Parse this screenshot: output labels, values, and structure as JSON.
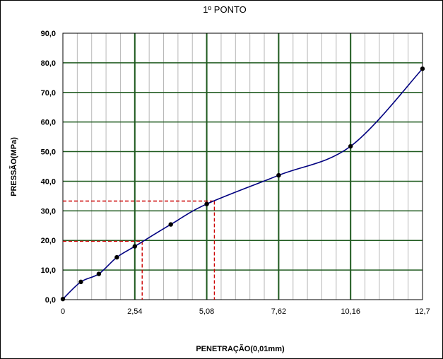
{
  "chart_data": {
    "type": "line",
    "title": "1º PONTO",
    "xlabel": "PENETRAÇÃO(0,01mm)",
    "ylabel": "PRESSÃO(MPa)",
    "xlim": [
      0,
      12.7
    ],
    "ylim": [
      0,
      90
    ],
    "x_ticks": [
      0,
      2.54,
      5.08,
      7.62,
      10.16,
      12.7
    ],
    "x_tick_labels": [
      "0",
      "2,54",
      "5,08",
      "7,62",
      "10,16",
      "12,7"
    ],
    "y_ticks": [
      0,
      10,
      20,
      30,
      40,
      50,
      60,
      70,
      80,
      90
    ],
    "y_tick_labels": [
      "0,0",
      "10,0",
      "20,0",
      "30,0",
      "40,0",
      "50,0",
      "60,0",
      "70,0",
      "80,0",
      "90,0"
    ],
    "grid": true,
    "legend": "none",
    "colors": {
      "plot_background": "#ffffff",
      "grid_major": "#1f5a1f",
      "grid_minor": "#b8b8b8",
      "series_line": "#000080",
      "markers": "#000000",
      "reference_lines": "#cc0000"
    },
    "series": [
      {
        "x": [
          0,
          0.635,
          1.27,
          1.905,
          2.54,
          3.81,
          5.08,
          7.62,
          10.16,
          12.7
        ],
        "values": [
          0.2,
          6.0,
          8.7,
          14.3,
          18.0,
          25.4,
          32.3,
          42.0,
          51.8,
          78.0
        ]
      }
    ],
    "reference_lines": [
      {
        "x": 2.8,
        "y": 19.7
      },
      {
        "x": 5.35,
        "y": 33.3
      }
    ]
  }
}
